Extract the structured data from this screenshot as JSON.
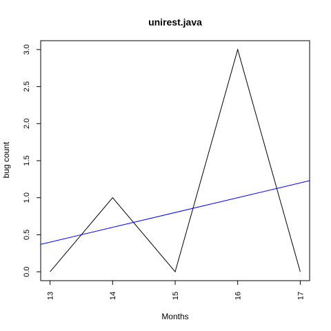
{
  "chart_data": {
    "type": "line",
    "title": "unirest.java",
    "xlabel": "Months",
    "ylabel": "bug count",
    "x": [
      13,
      14,
      15,
      16,
      17
    ],
    "series": [
      {
        "values": [
          0,
          1,
          0,
          3,
          0
        ],
        "color": "#000000"
      }
    ],
    "trend_line": {
      "color": "#0000ff",
      "points": [
        [
          12.85,
          0.37
        ],
        [
          17.15,
          1.23
        ]
      ]
    },
    "xlim": [
      12.85,
      17.15
    ],
    "ylim": [
      -0.12,
      3.12
    ],
    "x_ticks": [
      13,
      14,
      15,
      16,
      17
    ],
    "x_tick_labels": [
      "13",
      "14",
      "15",
      "16",
      "17"
    ],
    "y_ticks": [
      0,
      0.5,
      1,
      1.5,
      2,
      2.5,
      3
    ],
    "y_tick_labels": [
      "0.0",
      "0.5",
      "1.0",
      "1.5",
      "2.0",
      "2.5",
      "3.0"
    ],
    "grid": false,
    "legend": "none"
  }
}
